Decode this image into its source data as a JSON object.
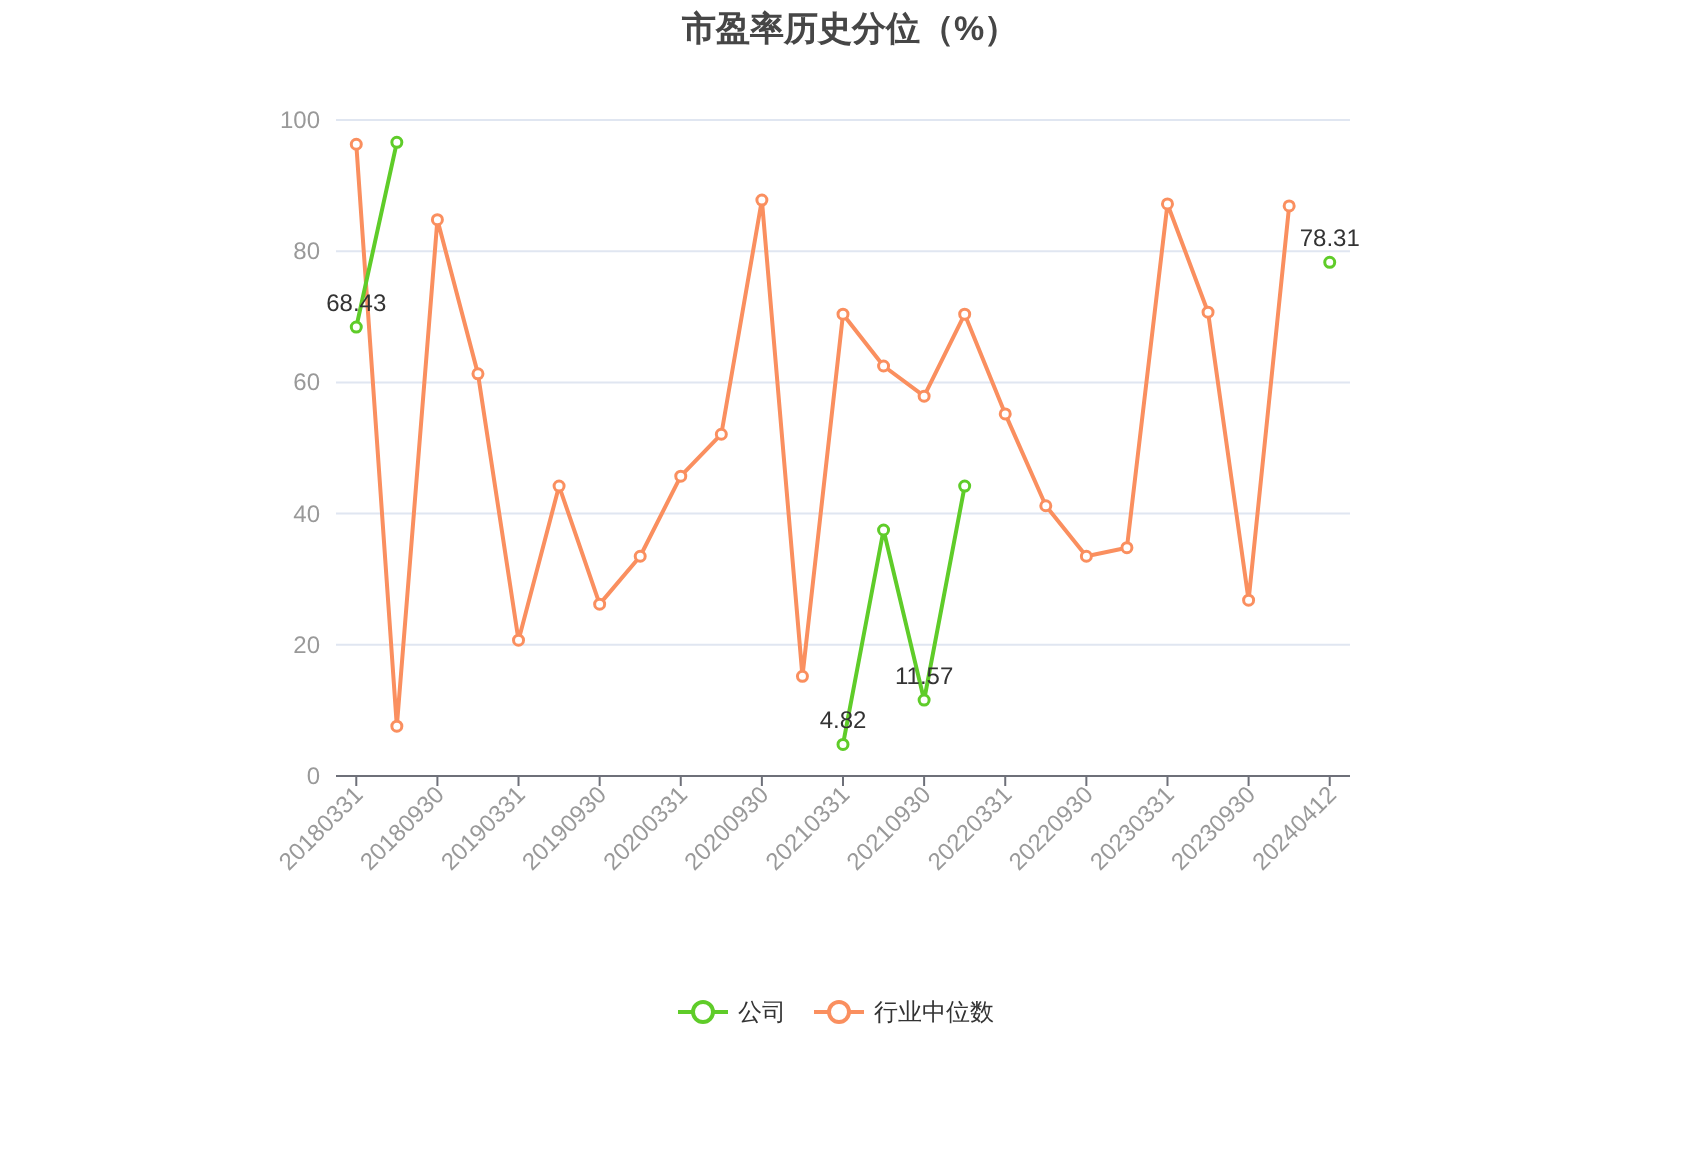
{
  "chart_data": {
    "type": "line",
    "title": "市盈率历史分位（%）",
    "categories": [
      "20180331",
      null,
      "20180930",
      null,
      "20190331",
      null,
      "20190930",
      null,
      "20200331",
      null,
      "20200930",
      null,
      "20210331",
      null,
      "20210930",
      null,
      "20220331",
      null,
      "20220930",
      null,
      "20230331",
      null,
      "20230930",
      null,
      "20240412"
    ],
    "series": [
      {
        "name": "公司",
        "color": "#5fcc29",
        "values": [
          68.43,
          96.6,
          null,
          null,
          null,
          null,
          null,
          null,
          null,
          null,
          null,
          null,
          4.82,
          37.5,
          11.57,
          44.2,
          null,
          null,
          null,
          null,
          null,
          null,
          null,
          null,
          78.31
        ],
        "value_labels": [
          "68.43",
          null,
          null,
          null,
          null,
          null,
          null,
          null,
          null,
          null,
          null,
          null,
          "4.82",
          null,
          "11.57",
          null,
          null,
          null,
          null,
          null,
          null,
          null,
          null,
          null,
          "78.31"
        ]
      },
      {
        "name": "行业中位数",
        "color": "#fa8f5f",
        "values": [
          96.3,
          7.6,
          84.8,
          61.3,
          20.7,
          44.2,
          26.2,
          33.5,
          45.7,
          52.1,
          87.8,
          15.2,
          70.4,
          62.5,
          57.9,
          70.4,
          55.2,
          41.2,
          33.5,
          34.8,
          87.2,
          70.7,
          26.8,
          86.9,
          null
        ]
      }
    ],
    "ylim": [
      0,
      100
    ],
    "yticks": [
      0,
      20,
      40,
      60,
      80,
      100
    ],
    "grid": "y",
    "legend": "bottom",
    "marker": "circle",
    "line_style": "solid"
  }
}
